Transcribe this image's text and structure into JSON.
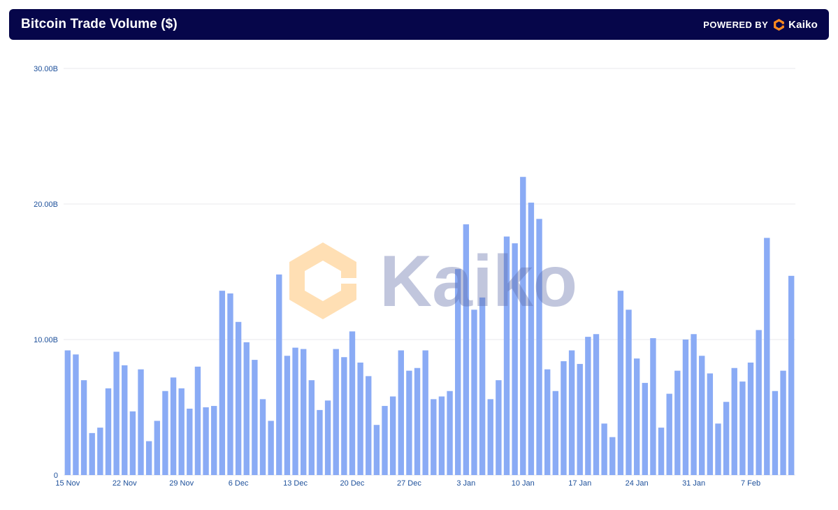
{
  "header": {
    "title": "Bitcoin Trade Volume ($)",
    "powered_by": "POWERED BY",
    "brand": "Kaiko",
    "brand_icon": "kaiko-logo-icon"
  },
  "watermark": {
    "text": "Kaiko",
    "icon": "kaiko-logo-icon"
  },
  "colors": {
    "header_bg": "#06064a",
    "bar": "#8aabf5",
    "tick_text": "#1c4f9a",
    "grid": "#e8e8ec",
    "brand_orange": "#ff8a1f"
  },
  "chart_data": {
    "type": "bar",
    "title": "Bitcoin Trade Volume ($)",
    "xlabel": "",
    "ylabel": "",
    "ylim": [
      0,
      30
    ],
    "y_unit": "B",
    "yticks": [
      0,
      10,
      20,
      30
    ],
    "ytick_labels": [
      "0",
      "10.00B",
      "20.00B",
      "30.00B"
    ],
    "grid": true,
    "legend": "none",
    "x_tick_labels": [
      {
        "label": "15 Nov",
        "index": 0
      },
      {
        "label": "22 Nov",
        "index": 7
      },
      {
        "label": "29 Nov",
        "index": 14
      },
      {
        "label": "6 Dec",
        "index": 21
      },
      {
        "label": "13 Dec",
        "index": 28
      },
      {
        "label": "20 Dec",
        "index": 35
      },
      {
        "label": "27 Dec",
        "index": 42
      },
      {
        "label": "3 Jan",
        "index": 49
      },
      {
        "label": "10 Jan",
        "index": 56
      },
      {
        "label": "17 Jan",
        "index": 63
      },
      {
        "label": "24 Jan",
        "index": 70
      },
      {
        "label": "31 Jan",
        "index": 77
      },
      {
        "label": "7 Feb",
        "index": 84
      }
    ],
    "values": [
      9.2,
      8.9,
      7.0,
      3.1,
      3.5,
      6.4,
      9.1,
      8.1,
      4.7,
      7.8,
      2.5,
      4.0,
      6.2,
      7.2,
      6.4,
      4.9,
      8.0,
      5.0,
      5.1,
      13.6,
      13.4,
      11.3,
      9.8,
      8.5,
      5.6,
      4.0,
      14.8,
      8.8,
      9.4,
      9.3,
      7.0,
      4.8,
      5.5,
      9.3,
      8.7,
      10.6,
      8.3,
      7.3,
      3.7,
      5.1,
      5.8,
      9.2,
      7.7,
      7.9,
      9.2,
      5.6,
      5.8,
      6.2,
      15.2,
      18.5,
      12.2,
      13.1,
      5.6,
      7.0,
      17.6,
      17.1,
      22.0,
      20.1,
      18.9,
      7.8,
      6.2,
      8.4,
      9.2,
      8.2,
      10.2,
      10.4,
      3.8,
      2.8,
      13.6,
      12.2,
      8.6,
      6.8,
      10.1,
      3.5,
      6.0,
      7.7,
      10.0,
      10.4,
      8.8,
      7.5,
      3.8,
      5.4,
      7.9,
      6.9,
      8.3,
      10.7,
      17.5,
      6.2,
      7.7,
      14.7
    ]
  }
}
